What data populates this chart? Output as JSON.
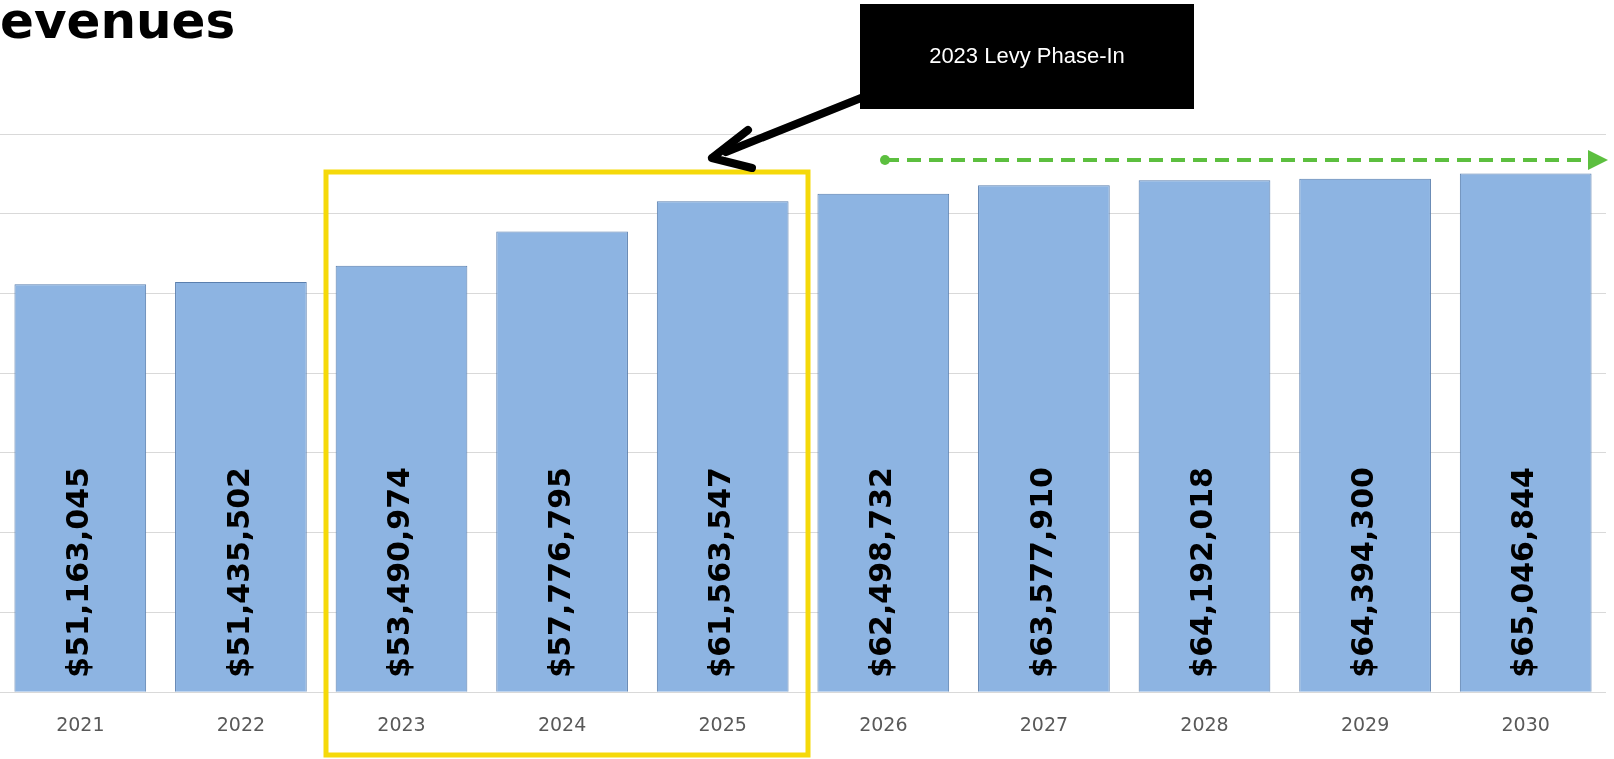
{
  "chart_data": {
    "type": "bar",
    "title": "evenues",
    "categories": [
      "2021",
      "2022",
      "2023",
      "2024",
      "2025",
      "2026",
      "2027",
      "2028",
      "2029",
      "2030"
    ],
    "values": [
      51163045,
      51435502,
      53490974,
      57776795,
      61563547,
      62498732,
      63577910,
      64192018,
      64394300,
      65046844
    ],
    "value_labels": [
      "$51,163,045",
      "$51,435,502",
      "$53,490,974",
      "$57,776,795",
      "$61,563,547",
      "$62,498,732",
      "$63,577,910",
      "$64,192,018",
      "$64,394,300",
      "$65,046,844"
    ],
    "color": "#8db4e2",
    "ylim": [
      0,
      70000000
    ],
    "yticks": [
      {
        "value": 0,
        "label": null
      },
      {
        "value": 10000000,
        "label": null
      },
      {
        "value": 20000000,
        "label": null
      },
      {
        "value": 30000000,
        "label": null
      },
      {
        "value": 40000000,
        "label": null
      },
      {
        "value": 50000000,
        "label": null
      },
      {
        "value": 60000000,
        "label": null
      },
      {
        "value": 70000000,
        "label": null
      }
    ],
    "tick_labels": "x",
    "grid": "y",
    "legend": false,
    "annotations": [
      "2023 Levy Phase-In"
    ]
  }
}
